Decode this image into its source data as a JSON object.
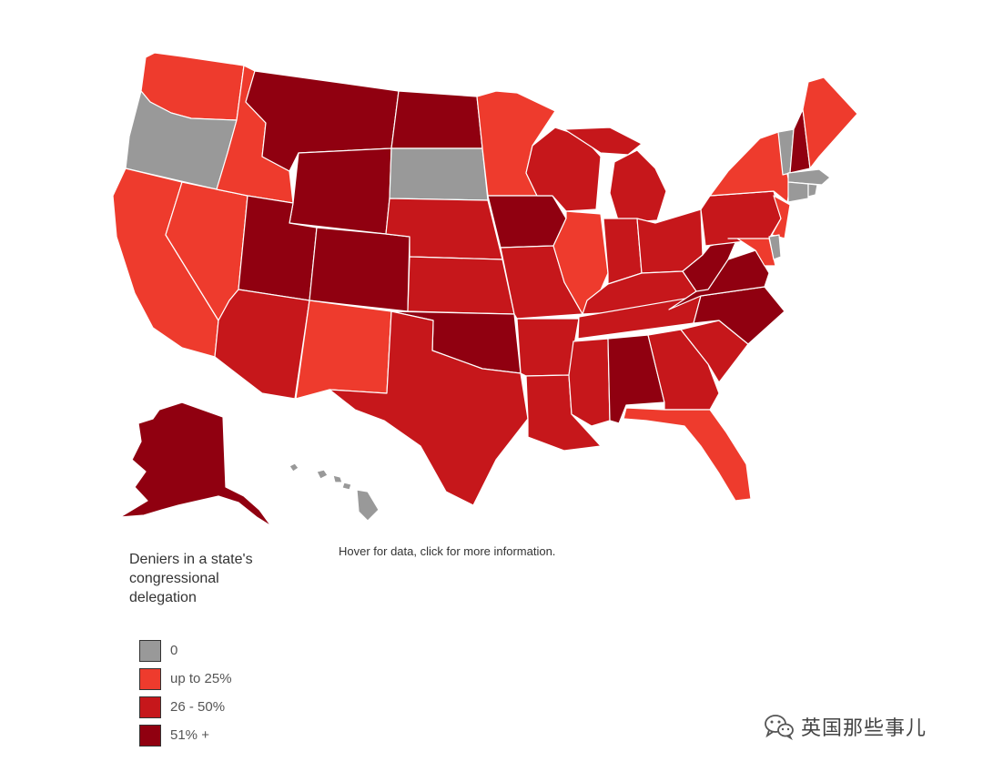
{
  "colors": {
    "zero": "#999999",
    "up_to_25": "#ee3b2d",
    "p26_50": "#c6171b",
    "p51_plus": "#900010"
  },
  "hint": "Hover for data, click for more information.",
  "legend": {
    "title": "Deniers in a state's congressional delegation",
    "items": [
      {
        "label": "0",
        "color": "#999999"
      },
      {
        "label": "up to 25%",
        "color": "#ee3b2d"
      },
      {
        "label": "26 - 50%",
        "color": "#c6171b"
      },
      {
        "label": "51% +",
        "color": "#900010"
      }
    ]
  },
  "states": {
    "WA": "up_to_25",
    "OR": "zero",
    "CA": "up_to_25",
    "NV": "up_to_25",
    "ID": "up_to_25",
    "MT": "p51_plus",
    "WY": "p51_plus",
    "UT": "p51_plus",
    "CO": "p51_plus",
    "AZ": "p26_50",
    "NM": "up_to_25",
    "ND": "p51_plus",
    "SD": "zero",
    "NE": "p26_50",
    "KS": "p26_50",
    "OK": "p51_plus",
    "TX": "p26_50",
    "MN": "up_to_25",
    "IA": "p51_plus",
    "MO": "p26_50",
    "AR": "p26_50",
    "LA": "p26_50",
    "WI": "p26_50",
    "IL": "up_to_25",
    "MI": "p26_50",
    "IN": "p26_50",
    "OH": "p26_50",
    "KY": "p26_50",
    "TN": "p26_50",
    "MS": "p26_50",
    "AL": "p51_plus",
    "GA": "p26_50",
    "FL": "up_to_25",
    "SC": "p26_50",
    "NC": "p51_plus",
    "VA": "p51_plus",
    "WV": "p51_plus",
    "PA": "p26_50",
    "NY": "up_to_25",
    "VT": "zero",
    "NH": "p51_plus",
    "ME": "up_to_25",
    "MA": "zero",
    "CT": "zero",
    "RI": "zero",
    "NJ": "up_to_25",
    "DE": "zero",
    "MD": "up_to_25",
    "AK": "p51_plus",
    "HI": "zero"
  },
  "watermark": {
    "text": "英国那些事儿",
    "icon": "wechat-icon"
  }
}
